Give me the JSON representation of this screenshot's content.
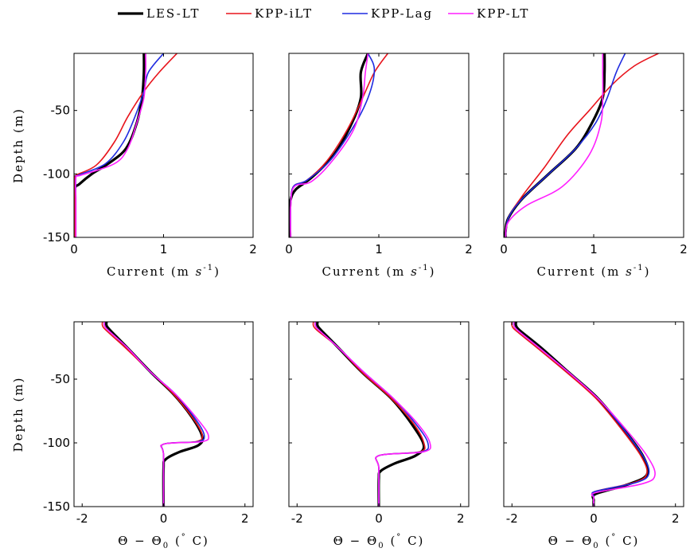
{
  "legend": [
    {
      "label": "LES-LT",
      "color": "#000000",
      "width": 3.2
    },
    {
      "label": "KPP-iLT",
      "color": "#e8141c",
      "width": 1.6
    },
    {
      "label": "KPP-Lag",
      "color": "#1f2be0",
      "width": 1.6
    },
    {
      "label": "KPP-LT",
      "color": "#ff1fff",
      "width": 1.6
    }
  ],
  "chart_data": [
    {
      "type": "line",
      "xlabel": "Current (m s^-1)",
      "ylabel": "Depth (m)",
      "xlim": [
        0,
        2
      ],
      "ylim": [
        -150,
        -5
      ],
      "xticks": [
        "0",
        "1",
        "2"
      ],
      "yticks": [
        "-50",
        "-100",
        "-150"
      ],
      "ytick_values": [
        -50,
        -100,
        -150
      ],
      "series": [
        {
          "name": "LES-LT",
          "x": [
            0.78,
            0.78,
            0.76,
            0.7,
            0.58,
            0.38,
            0.2,
            0.06,
            0.01,
            0.01,
            0.01
          ],
          "y": [
            -5,
            -20,
            -40,
            -60,
            -80,
            -92,
            -100,
            -108,
            -112,
            -130,
            -150
          ]
        },
        {
          "name": "KPP-iLT",
          "x": [
            1.15,
            0.95,
            0.78,
            0.6,
            0.45,
            0.25,
            0.02,
            0.01,
            0.01,
            0.01
          ],
          "y": [
            -5,
            -20,
            -35,
            -55,
            -75,
            -93,
            -101,
            -103,
            -120,
            -150
          ]
        },
        {
          "name": "KPP-Lag",
          "x": [
            1.0,
            0.83,
            0.78,
            0.68,
            0.55,
            0.35,
            0.05,
            0.02,
            0.02,
            0.02
          ],
          "y": [
            -5,
            -20,
            -35,
            -55,
            -75,
            -92,
            -101,
            -103,
            -120,
            -150
          ]
        },
        {
          "name": "KPP-LT",
          "x": [
            0.8,
            0.8,
            0.78,
            0.7,
            0.6,
            0.45,
            0.08,
            0.02,
            0.02,
            0.02
          ],
          "y": [
            -5,
            -20,
            -40,
            -60,
            -80,
            -92,
            -101,
            -103,
            -120,
            -150
          ]
        }
      ]
    },
    {
      "type": "line",
      "xlabel": "Current (m s^-1)",
      "ylabel": "",
      "xlim": [
        0,
        2
      ],
      "ylim": [
        -150,
        -5
      ],
      "xticks": [
        "0",
        "1",
        "2"
      ],
      "yticks": [],
      "ytick_values": [],
      "series": [
        {
          "name": "LES-LT",
          "x": [
            0.88,
            0.8,
            0.8,
            0.7,
            0.5,
            0.25,
            0.08,
            0.02,
            0.01,
            0.01
          ],
          "y": [
            -5,
            -20,
            -40,
            -60,
            -85,
            -103,
            -112,
            -120,
            -130,
            -150
          ]
        },
        {
          "name": "KPP-iLT",
          "x": [
            1.1,
            0.95,
            0.82,
            0.65,
            0.42,
            0.2,
            0.05,
            0.02,
            0.02
          ],
          "y": [
            -5,
            -20,
            -40,
            -65,
            -90,
            -105,
            -110,
            -125,
            -150
          ]
        },
        {
          "name": "KPP-Lag",
          "x": [
            0.88,
            0.95,
            0.88,
            0.7,
            0.45,
            0.2,
            0.05,
            0.02,
            0.02
          ],
          "y": [
            -5,
            -18,
            -40,
            -65,
            -90,
            -105,
            -110,
            -125,
            -150
          ]
        },
        {
          "name": "KPP-LT",
          "x": [
            0.88,
            0.85,
            0.82,
            0.72,
            0.48,
            0.25,
            0.06,
            0.02,
            0.02
          ],
          "y": [
            -5,
            -20,
            -40,
            -65,
            -90,
            -106,
            -110,
            -125,
            -150
          ]
        }
      ]
    },
    {
      "type": "line",
      "xlabel": "Current (m s^-1)",
      "ylabel": "",
      "xlim": [
        0,
        2
      ],
      "ylim": [
        -150,
        -5
      ],
      "xticks": [
        "0",
        "1",
        "2"
      ],
      "yticks": [],
      "ytick_values": [],
      "series": [
        {
          "name": "LES-LT",
          "x": [
            1.12,
            1.12,
            1.1,
            0.98,
            0.8,
            0.5,
            0.2,
            0.05,
            0.02,
            0.02
          ],
          "y": [
            -5,
            -20,
            -40,
            -60,
            -80,
            -100,
            -120,
            -135,
            -145,
            -150
          ]
        },
        {
          "name": "KPP-iLT",
          "x": [
            1.72,
            1.45,
            1.2,
            0.95,
            0.7,
            0.45,
            0.2,
            0.05,
            0.02
          ],
          "y": [
            -5,
            -15,
            -30,
            -50,
            -70,
            -95,
            -118,
            -135,
            -150
          ]
        },
        {
          "name": "KPP-Lag",
          "x": [
            1.35,
            1.25,
            1.15,
            1.02,
            0.8,
            0.5,
            0.2,
            0.05,
            0.02
          ],
          "y": [
            -5,
            -20,
            -40,
            -60,
            -80,
            -100,
            -120,
            -135,
            -150
          ]
        },
        {
          "name": "KPP-LT",
          "x": [
            1.1,
            1.1,
            1.1,
            1.08,
            0.95,
            0.65,
            0.25,
            0.05,
            0.02
          ],
          "y": [
            -5,
            -20,
            -40,
            -60,
            -85,
            -110,
            -125,
            -138,
            -150
          ]
        }
      ]
    },
    {
      "type": "line",
      "xlabel": "Θ − Θ0 (° C)",
      "ylabel": "Depth (m)",
      "xlim": [
        -2.2,
        2.2
      ],
      "ylim": [
        -150,
        -5
      ],
      "xticks": [
        "-2",
        "0",
        "2"
      ],
      "yticks": [
        "-50",
        "-100",
        "-150"
      ],
      "ytick_values": [
        -50,
        -100,
        -150
      ],
      "series": [
        {
          "name": "LES-LT",
          "x": [
            -1.4,
            -1.4,
            -1.3,
            -0.9,
            -0.3,
            0.25,
            0.7,
            0.95,
            0.85,
            0.4,
            0.05,
            0.0,
            0.0
          ],
          "y": [
            -5,
            -8,
            -12,
            -25,
            -45,
            -62,
            -80,
            -95,
            -102,
            -107,
            -113,
            -120,
            -150
          ]
        },
        {
          "name": "KPP-iLT",
          "x": [
            -1.5,
            -1.5,
            -1.4,
            -0.95,
            -0.3,
            0.25,
            0.75,
            0.95,
            0.8,
            0.0,
            0.0,
            0.0
          ],
          "y": [
            -5,
            -8,
            -12,
            -25,
            -45,
            -62,
            -82,
            -94,
            -99,
            -101,
            -110,
            -150
          ]
        },
        {
          "name": "KPP-Lag",
          "x": [
            -1.45,
            -1.45,
            -1.35,
            -0.9,
            -0.3,
            0.3,
            0.8,
            1.0,
            0.85,
            0.0,
            0.0,
            0.0
          ],
          "y": [
            -5,
            -8,
            -12,
            -25,
            -45,
            -62,
            -82,
            -94,
            -99,
            -101,
            -110,
            -150
          ]
        },
        {
          "name": "KPP-LT",
          "x": [
            -1.45,
            -1.45,
            -1.35,
            -0.9,
            -0.3,
            0.3,
            0.85,
            1.1,
            0.95,
            0.0,
            0.0,
            0.0
          ],
          "y": [
            -5,
            -8,
            -12,
            -25,
            -45,
            -62,
            -82,
            -94,
            -99,
            -101,
            -110,
            -150
          ]
        }
      ]
    },
    {
      "type": "line",
      "xlabel": "Θ − Θ0 (° C)",
      "ylabel": "",
      "xlim": [
        -2.2,
        2.2
      ],
      "ylim": [
        -150,
        -5
      ],
      "xticks": [
        "-2",
        "0",
        "2"
      ],
      "yticks": [],
      "ytick_values": [],
      "series": [
        {
          "name": "LES-LT",
          "x": [
            -1.5,
            -1.5,
            -1.4,
            -1.0,
            -0.4,
            0.3,
            0.8,
            1.1,
            0.9,
            0.4,
            0.05,
            0.0,
            0.0
          ],
          "y": [
            -5,
            -8,
            -12,
            -25,
            -45,
            -65,
            -85,
            -102,
            -110,
            -116,
            -122,
            -128,
            -150
          ]
        },
        {
          "name": "KPP-iLT",
          "x": [
            -1.6,
            -1.6,
            -1.5,
            -1.0,
            -0.4,
            0.3,
            0.85,
            1.1,
            1.0,
            0.0,
            0.0,
            0.0
          ],
          "y": [
            -5,
            -8,
            -12,
            -25,
            -45,
            -65,
            -85,
            -100,
            -107,
            -110,
            -120,
            -150
          ]
        },
        {
          "name": "KPP-Lag",
          "x": [
            -1.55,
            -1.55,
            -1.45,
            -1.0,
            -0.35,
            0.35,
            0.9,
            1.2,
            1.05,
            0.0,
            0.0,
            0.0
          ],
          "y": [
            -5,
            -8,
            -12,
            -25,
            -45,
            -65,
            -85,
            -100,
            -107,
            -110,
            -120,
            -150
          ]
        },
        {
          "name": "KPP-LT",
          "x": [
            -1.55,
            -1.55,
            -1.45,
            -1.0,
            -0.35,
            0.35,
            0.95,
            1.25,
            1.1,
            0.0,
            0.0,
            0.0
          ],
          "y": [
            -5,
            -8,
            -12,
            -25,
            -45,
            -65,
            -85,
            -100,
            -107,
            -110,
            -120,
            -150
          ]
        }
      ]
    },
    {
      "type": "line",
      "xlabel": "Θ − Θ0 (° C)",
      "ylabel": "",
      "xlim": [
        -2.2,
        2.2
      ],
      "ylim": [
        -150,
        -5
      ],
      "xticks": [
        "-2",
        "0",
        "2"
      ],
      "yticks": [],
      "ytick_values": [],
      "series": [
        {
          "name": "LES-LT",
          "x": [
            -1.9,
            -1.9,
            -1.8,
            -1.3,
            -0.6,
            0.1,
            0.7,
            1.2,
            1.3,
            0.8,
            0.05,
            0.0,
            0.0
          ],
          "y": [
            -5,
            -8,
            -12,
            -25,
            -45,
            -65,
            -88,
            -110,
            -125,
            -133,
            -140,
            -145,
            -150
          ]
        },
        {
          "name": "KPP-iLT",
          "x": [
            -2.0,
            -2.0,
            -1.9,
            -1.4,
            -0.65,
            0.05,
            0.65,
            1.15,
            1.3,
            1.0,
            0.05,
            0.0,
            0.0
          ],
          "y": [
            -5,
            -8,
            -12,
            -25,
            -45,
            -65,
            -88,
            -110,
            -124,
            -131,
            -138,
            -142,
            -150
          ]
        },
        {
          "name": "KPP-Lag",
          "x": [
            -1.95,
            -1.95,
            -1.85,
            -1.35,
            -0.6,
            0.1,
            0.7,
            1.2,
            1.35,
            1.05,
            0.05,
            0.0,
            0.0
          ],
          "y": [
            -5,
            -8,
            -12,
            -25,
            -45,
            -65,
            -88,
            -110,
            -124,
            -131,
            -138,
            -142,
            -150
          ]
        },
        {
          "name": "KPP-LT",
          "x": [
            -1.95,
            -1.95,
            -1.85,
            -1.35,
            -0.6,
            0.1,
            0.75,
            1.3,
            1.5,
            1.2,
            0.05,
            0.0,
            0.0
          ],
          "y": [
            -5,
            -8,
            -12,
            -25,
            -45,
            -65,
            -88,
            -110,
            -125,
            -132,
            -139,
            -143,
            -150
          ]
        }
      ]
    }
  ]
}
